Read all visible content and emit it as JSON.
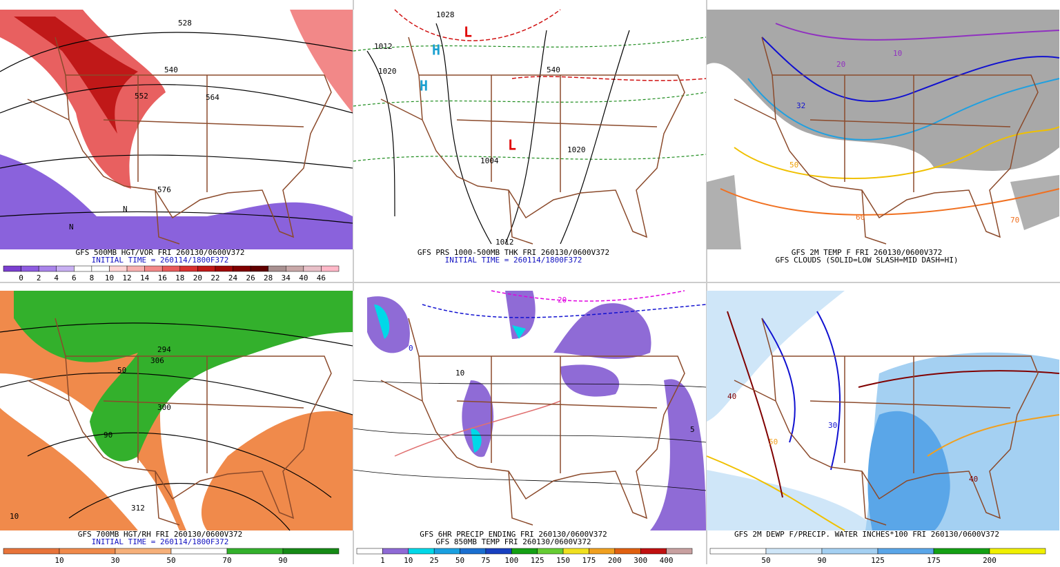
{
  "panels": [
    {
      "captions": [
        "GFS 500MB HGT/VOR FRI 260130/0600V372",
        "INITIAL TIME = 260114/1800F372"
      ],
      "colorbar": {
        "labels": [
          0,
          2,
          4,
          6,
          8,
          10,
          12,
          14,
          16,
          18,
          20,
          22,
          24,
          26,
          28,
          34,
          40,
          46
        ],
        "colors": [
          "#7a3fd0",
          "#8e5ce0",
          "#a984ea",
          "#c8b0f2",
          "#ffffff",
          "#ffffff",
          "#ffd6d6",
          "#f8b0b0",
          "#f28888",
          "#e85a5a",
          "#d83030",
          "#c01818",
          "#a00808",
          "#800000",
          "#600000",
          "#a89090",
          "#c8a8a8",
          "#e8c0c8",
          "#ffb8c8"
        ]
      },
      "map_labels": [
        "528",
        "540",
        "552",
        "564",
        "576",
        "N",
        "N"
      ]
    },
    {
      "captions": [
        "GFS PRS 1000-500MB THK FRI 260130/0600V372",
        "INITIAL TIME = 260114/1800F372"
      ],
      "colorbar": null,
      "map_labels": [
        "1028",
        "1012",
        "1020",
        "1020",
        "1004",
        "1012",
        "540",
        "L",
        "L",
        "H",
        "H"
      ]
    },
    {
      "captions": [
        "GFS 2M TEMP F FRI 260130/0600V372",
        "GFS CLOUDS (SOLID=LOW SLASH=MID DASH=HI)"
      ],
      "colorbar": null,
      "map_labels": [
        "20",
        "32",
        "10",
        "50",
        "60",
        "70"
      ]
    },
    {
      "captions": [
        "GFS 700MB HGT/RH FRI 260130/0600V372",
        "INITIAL TIME = 260114/1800F372"
      ],
      "colorbar": {
        "labels": [
          10,
          30,
          50,
          70,
          90
        ],
        "colors": [
          "#e8743a",
          "#f08a4b",
          "#f6b07a",
          "#ffffff",
          "#33b02c",
          "#168a16"
        ]
      },
      "map_labels": [
        "306",
        "294",
        "50",
        "90",
        "10",
        "312",
        "300"
      ]
    },
    {
      "captions": [
        "GFS 6HR PRECIP ENDING FRI 260130/0600V372",
        "GFS 850MB TEMP FRI 260130/0600V372"
      ],
      "colorbar": {
        "labels": [
          1,
          10,
          25,
          50,
          75,
          100,
          125,
          150,
          175,
          200,
          300,
          400
        ],
        "colors": [
          "#ffffff",
          "#8f6bd6",
          "#00d8e8",
          "#1aa0e0",
          "#1a6fd0",
          "#1840c0",
          "#14a014",
          "#66cc33",
          "#f0e020",
          "#f0a020",
          "#e06010",
          "#c01010",
          "#c8a0a0"
        ]
      },
      "map_labels": [
        "10",
        "20",
        "5",
        "0"
      ]
    },
    {
      "captions": [
        "GFS 2M DEWP F/PRECIP. WATER INCHES*100 FRI 260130/0600V372"
      ],
      "colorbar": {
        "labels": [
          50,
          90,
          125,
          175,
          200
        ],
        "colors": [
          "#ffffff",
          "#cfe6f8",
          "#a4d0f2",
          "#5aa6e8",
          "#14a014",
          "#f0f000"
        ]
      },
      "map_labels": [
        "40",
        "30",
        "50",
        "40"
      ]
    }
  ]
}
